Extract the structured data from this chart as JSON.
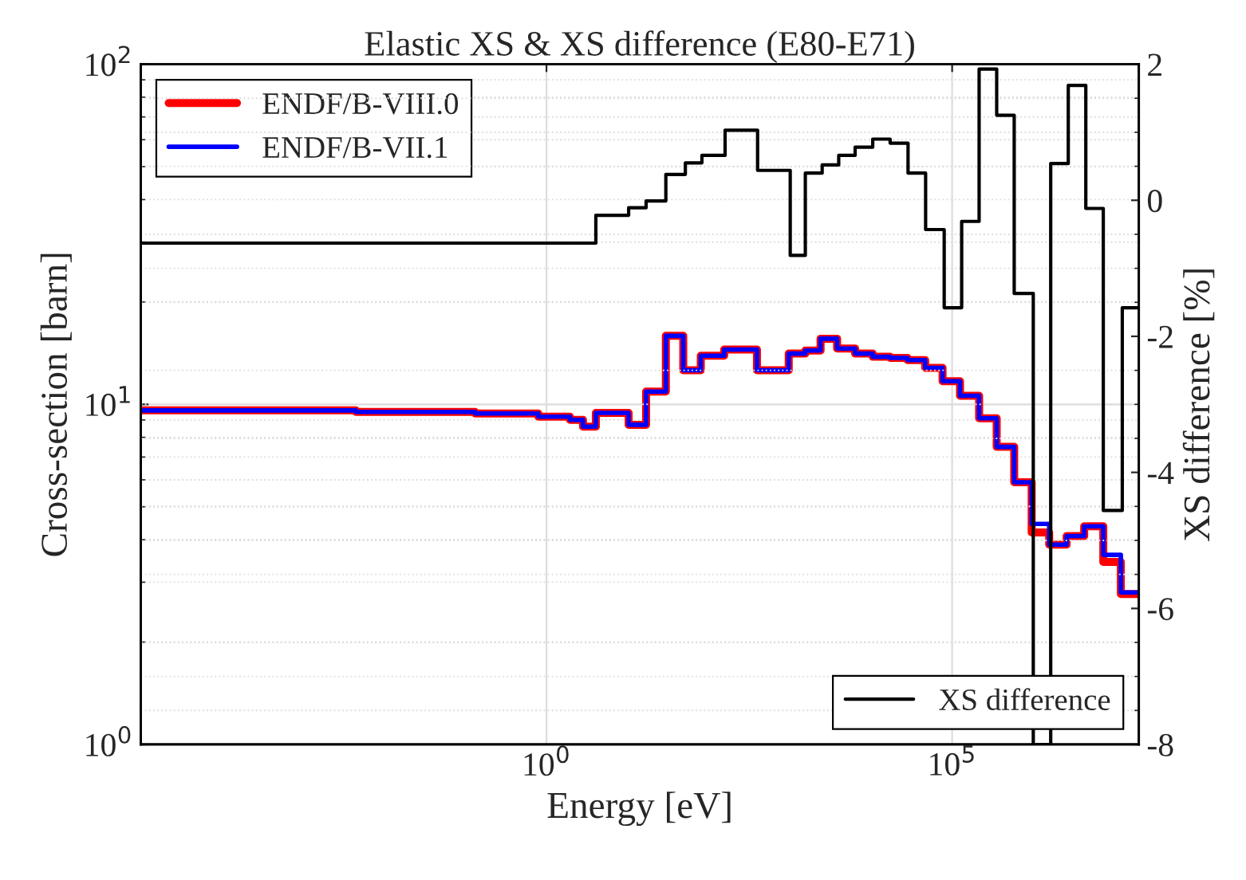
{
  "chart_data": {
    "type": "step",
    "title": "Elastic XS & XS difference (E80-E71)",
    "xlabel": "Energy [eV]",
    "ylabel": "Cross-section [barn]",
    "y2label": "XS difference [%]",
    "log": "xy",
    "grid": true,
    "legend": "top left",
    "xlim": [
      1e-05,
      20000000
    ],
    "xticks": [
      {
        "value": 1,
        "label": "10$^{0}$"
      },
      {
        "value": 100000,
        "label": "10$^{5}$"
      }
    ],
    "ylim": [
      1,
      100
    ],
    "yticks": [
      {
        "value": 1,
        "label": "10$^{0}$"
      },
      {
        "value": 10,
        "label": "10$^{1}$"
      },
      {
        "value": 100,
        "label": "10$^{2}$"
      }
    ],
    "y2lim": [
      -8,
      2
    ],
    "y2ticks": [
      -8,
      -6,
      -4,
      -2,
      0,
      2
    ],
    "series": [
      {
        "name": "ENDF/B-VIII.0",
        "color": "#ff0000",
        "x": [
          1e-05,
          0.00447,
          0.132,
          0.794,
          1.95,
          2.82,
          4.06,
          10.3,
          16.9,
          29.6,
          48.5,
          79.8,
          155,
          393,
          968,
          1550,
          2390,
          3820,
          6370,
          10500,
          17200,
          28200,
          46500,
          76200,
          125000,
          215000,
          354000,
          582000,
          955000,
          1570000,
          2580000,
          4240000,
          7290000,
          12000000,
          20000000
        ],
        "values": [
          9.6,
          9.5,
          9.4,
          9.2,
          9.0,
          8.6,
          9.44,
          8.71,
          10.9,
          15.9,
          12.6,
          13.9,
          14.5,
          12.6,
          14.1,
          14.4,
          15.6,
          14.6,
          14.1,
          13.8,
          13.7,
          13.5,
          12.8,
          11.7,
          10.6,
          9.1,
          7.5,
          5.9,
          4.2,
          3.87,
          4.1,
          4.38,
          3.44,
          2.77,
          2.77
        ]
      },
      {
        "name": "ENDF/B-VII.1",
        "color": "#0000ff",
        "x": [
          1e-05,
          0.00447,
          0.132,
          0.794,
          1.95,
          2.82,
          4.06,
          10.3,
          16.9,
          29.6,
          48.5,
          79.8,
          155,
          393,
          968,
          1550,
          2390,
          3820,
          6370,
          10500,
          17200,
          28200,
          46500,
          76200,
          125000,
          215000,
          354000,
          582000,
          955000,
          1570000,
          2580000,
          4240000,
          7290000,
          12000000,
          20000000
        ],
        "values": [
          9.6,
          9.5,
          9.4,
          9.2,
          9.0,
          8.6,
          9.44,
          8.71,
          10.9,
          15.9,
          12.6,
          13.9,
          14.5,
          12.6,
          14.1,
          14.4,
          15.6,
          14.6,
          14.1,
          13.8,
          13.7,
          13.5,
          12.8,
          11.7,
          10.6,
          9.1,
          7.5,
          5.9,
          4.45,
          3.87,
          4.1,
          4.38,
          3.61,
          2.8,
          2.8
        ]
      },
      {
        "name": "XS difference",
        "color": "#000000",
        "axis": "y2",
        "x": [
          1e-05,
          4.06,
          10.3,
          16.9,
          29.6,
          51.5,
          82.4,
          159,
          400,
          1010,
          1550,
          2500,
          4000,
          6370,
          10500,
          17200,
          28600,
          47100,
          79800,
          131000,
          215000,
          354000,
          582000,
          1000000,
          1640000,
          2700000,
          4440000,
          7290000,
          12500000,
          20000000
        ],
        "values": [
          -0.63,
          -0.22,
          -0.11,
          -0.01,
          0.38,
          0.55,
          0.66,
          1.03,
          0.44,
          -0.81,
          0.4,
          0.52,
          0.66,
          0.78,
          0.9,
          0.84,
          0.4,
          -0.43,
          -1.58,
          -0.31,
          1.93,
          1.25,
          -1.37,
          -8.0,
          0.54,
          1.69,
          -0.12,
          -4.56,
          -1.58,
          -1.58
        ]
      }
    ]
  }
}
